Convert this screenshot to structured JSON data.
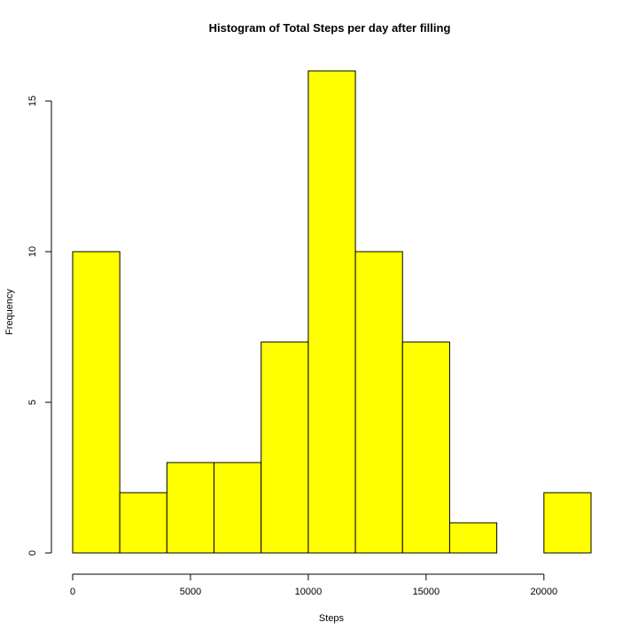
{
  "chart_data": {
    "type": "bar",
    "title": "Histogram of Total Steps per day after filling",
    "xlabel": "Steps",
    "ylabel": "Frequency",
    "bin_edges": [
      0,
      2000,
      4000,
      6000,
      8000,
      10000,
      12000,
      14000,
      16000,
      18000,
      20000,
      22000
    ],
    "values": [
      10,
      2,
      3,
      3,
      7,
      16,
      10,
      7,
      1,
      0,
      2
    ],
    "xlim": [
      0,
      22000
    ],
    "ylim": [
      0,
      16
    ],
    "x_ticks": [
      0,
      5000,
      10000,
      15000,
      20000
    ],
    "y_ticks": [
      0,
      5,
      10,
      15
    ],
    "x_tick_labels": [
      "0",
      "5000",
      "10000",
      "15000",
      "20000"
    ],
    "y_tick_labels": [
      "0",
      "5",
      "10",
      "15"
    ],
    "bar_fill": "#ffff00",
    "bar_stroke": "#000000",
    "grid": false
  }
}
